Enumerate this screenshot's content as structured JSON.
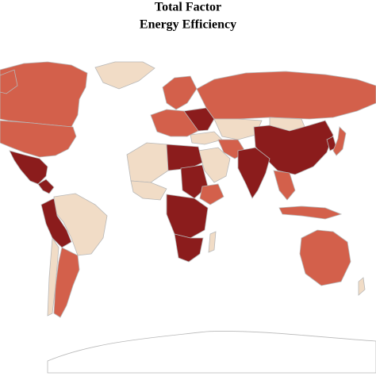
{
  "title": [
    "Total Factor",
    "Energy Efficiency"
  ]
}
